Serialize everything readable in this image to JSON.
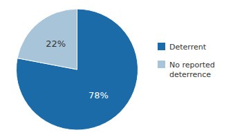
{
  "chart_data": {
    "type": "pie",
    "categories": [
      "Deterrent",
      "No reported\ndeterrence"
    ],
    "values": [
      78,
      22
    ],
    "value_labels": [
      "78%",
      "22%"
    ],
    "colors": [
      "#1B6BA8",
      "#A8C4D8"
    ],
    "data_labels": true,
    "legend": "right"
  }
}
